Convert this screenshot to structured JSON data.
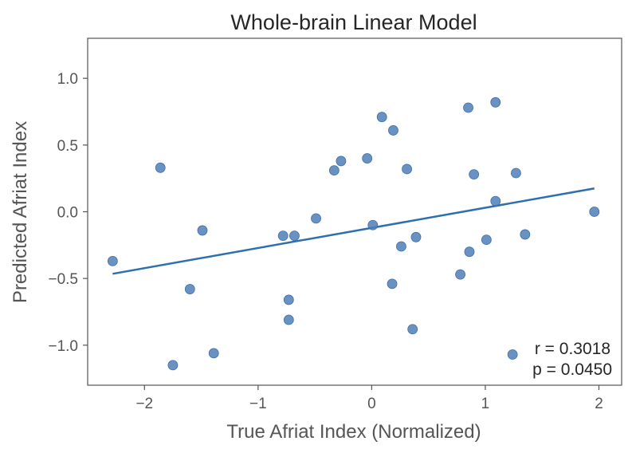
{
  "chart_data": {
    "type": "scatter",
    "title": "Whole-brain Linear Model",
    "xlabel": "True Afriat Index (Normalized)",
    "ylabel": "Predicted Afriat Index",
    "xlim": [
      -2.5,
      2.2
    ],
    "ylim": [
      -1.3,
      1.3
    ],
    "xticks": [
      -2,
      -1,
      0,
      1,
      2
    ],
    "xtick_labels": [
      "−2",
      "−1",
      "0",
      "1",
      "2"
    ],
    "yticks": [
      -1.0,
      -0.5,
      0.0,
      0.5,
      1.0
    ],
    "ytick_labels": [
      "−1.0",
      "−0.5",
      "0.0",
      "0.5",
      "1.0"
    ],
    "grid": false,
    "point_color": "#4f7fb8",
    "line_color": "#2e6fad",
    "points": [
      {
        "x": -2.28,
        "y": -0.37
      },
      {
        "x": -1.86,
        "y": 0.33
      },
      {
        "x": -1.75,
        "y": -1.15
      },
      {
        "x": -1.6,
        "y": -0.58
      },
      {
        "x": -1.49,
        "y": -0.14
      },
      {
        "x": -1.39,
        "y": -1.06
      },
      {
        "x": -0.78,
        "y": -0.18
      },
      {
        "x": -0.73,
        "y": -0.66
      },
      {
        "x": -0.73,
        "y": -0.81
      },
      {
        "x": -0.68,
        "y": -0.18
      },
      {
        "x": -0.49,
        "y": -0.05
      },
      {
        "x": -0.33,
        "y": 0.31
      },
      {
        "x": -0.27,
        "y": 0.38
      },
      {
        "x": -0.04,
        "y": 0.4
      },
      {
        "x": 0.01,
        "y": -0.1
      },
      {
        "x": 0.09,
        "y": 0.71
      },
      {
        "x": 0.18,
        "y": -0.54
      },
      {
        "x": 0.19,
        "y": 0.61
      },
      {
        "x": 0.26,
        "y": -0.26
      },
      {
        "x": 0.31,
        "y": 0.32
      },
      {
        "x": 0.36,
        "y": -0.88
      },
      {
        "x": 0.39,
        "y": -0.19
      },
      {
        "x": 0.78,
        "y": -0.47
      },
      {
        "x": 0.85,
        "y": 0.78
      },
      {
        "x": 0.86,
        "y": -0.3
      },
      {
        "x": 0.9,
        "y": 0.28
      },
      {
        "x": 1.01,
        "y": -0.21
      },
      {
        "x": 1.09,
        "y": 0.82
      },
      {
        "x": 1.09,
        "y": 0.08
      },
      {
        "x": 1.24,
        "y": -1.07
      },
      {
        "x": 1.27,
        "y": 0.29
      },
      {
        "x": 1.35,
        "y": -0.17
      },
      {
        "x": 1.96,
        "y": 0.0
      }
    ],
    "fit_line": {
      "x": [
        -2.28,
        1.96
      ],
      "y": [
        -0.465,
        0.175
      ]
    },
    "annotations": {
      "r_text": "r = 0.3018",
      "p_text": "p = 0.0450",
      "placement": "bottom-right"
    }
  }
}
